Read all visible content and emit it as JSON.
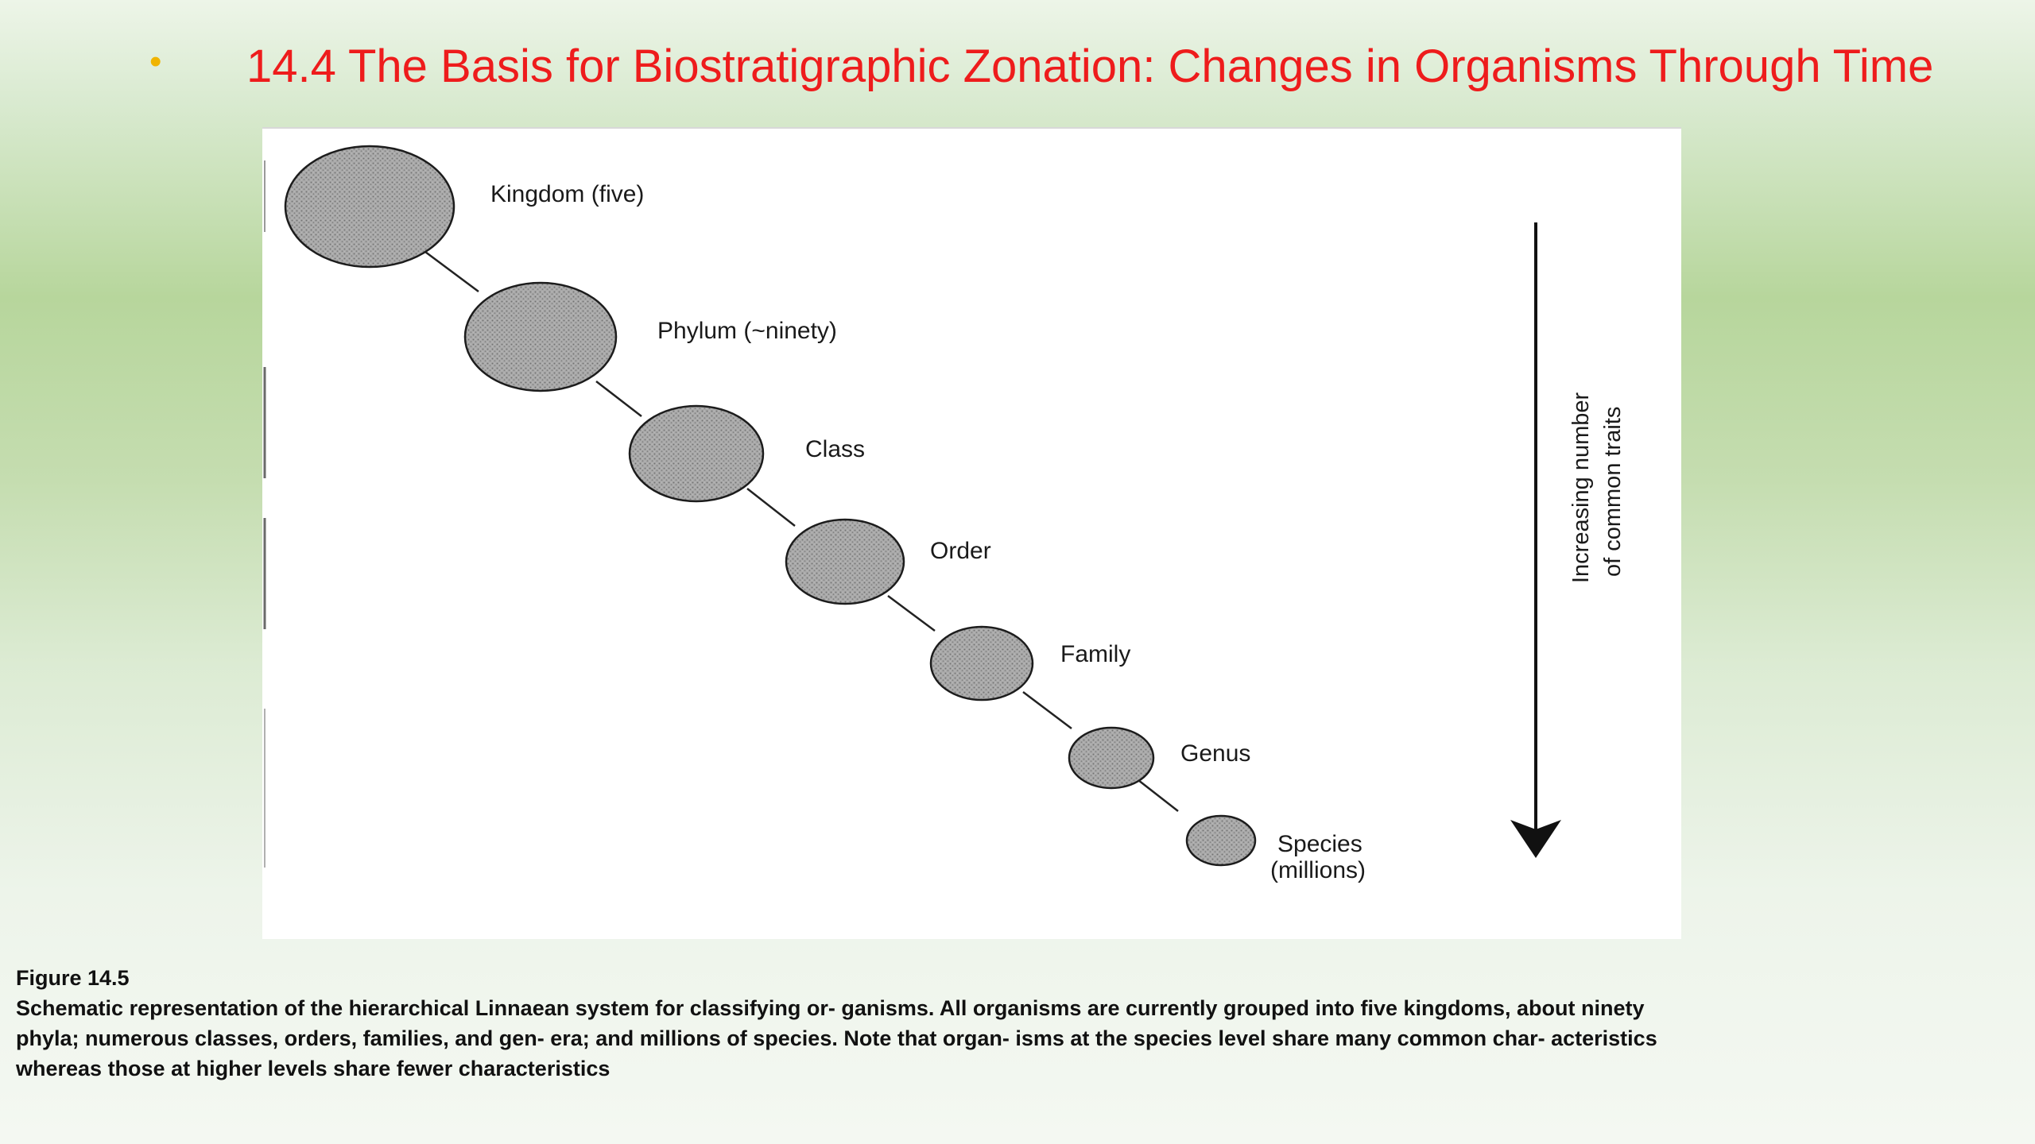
{
  "slide": {
    "title": "14.4 The Basis for Biostratigraphic Zonation: Changes in Organisms Through Time",
    "bullet": "•",
    "bullet_color": "#f0b400",
    "title_color": "#ee1c1c"
  },
  "diagram": {
    "levels": [
      {
        "label": "Kingdom (five)"
      },
      {
        "label": "Phylum (~ninety)"
      },
      {
        "label": "Class"
      },
      {
        "label": "Order"
      },
      {
        "label": "Family"
      },
      {
        "label": "Genus"
      },
      {
        "label": "Species"
      }
    ],
    "species_sublabel": "(millions)",
    "arrow_label_line1": "Increasing number",
    "arrow_label_line2": "of common traits"
  },
  "caption": {
    "heading": "Figure 14.5",
    "line1": "Schematic representation of the hierarchical Linnaean system for classifying or- ganisms. All organisms are currently grouped into five kingdoms, about ninety",
    "line2": "phyla; numerous classes, orders, families, and gen- era; and millions of species. Note that organ- isms at the species level share many common char- acteristics",
    "line3": "whereas those at higher levels share fewer characteristics"
  }
}
